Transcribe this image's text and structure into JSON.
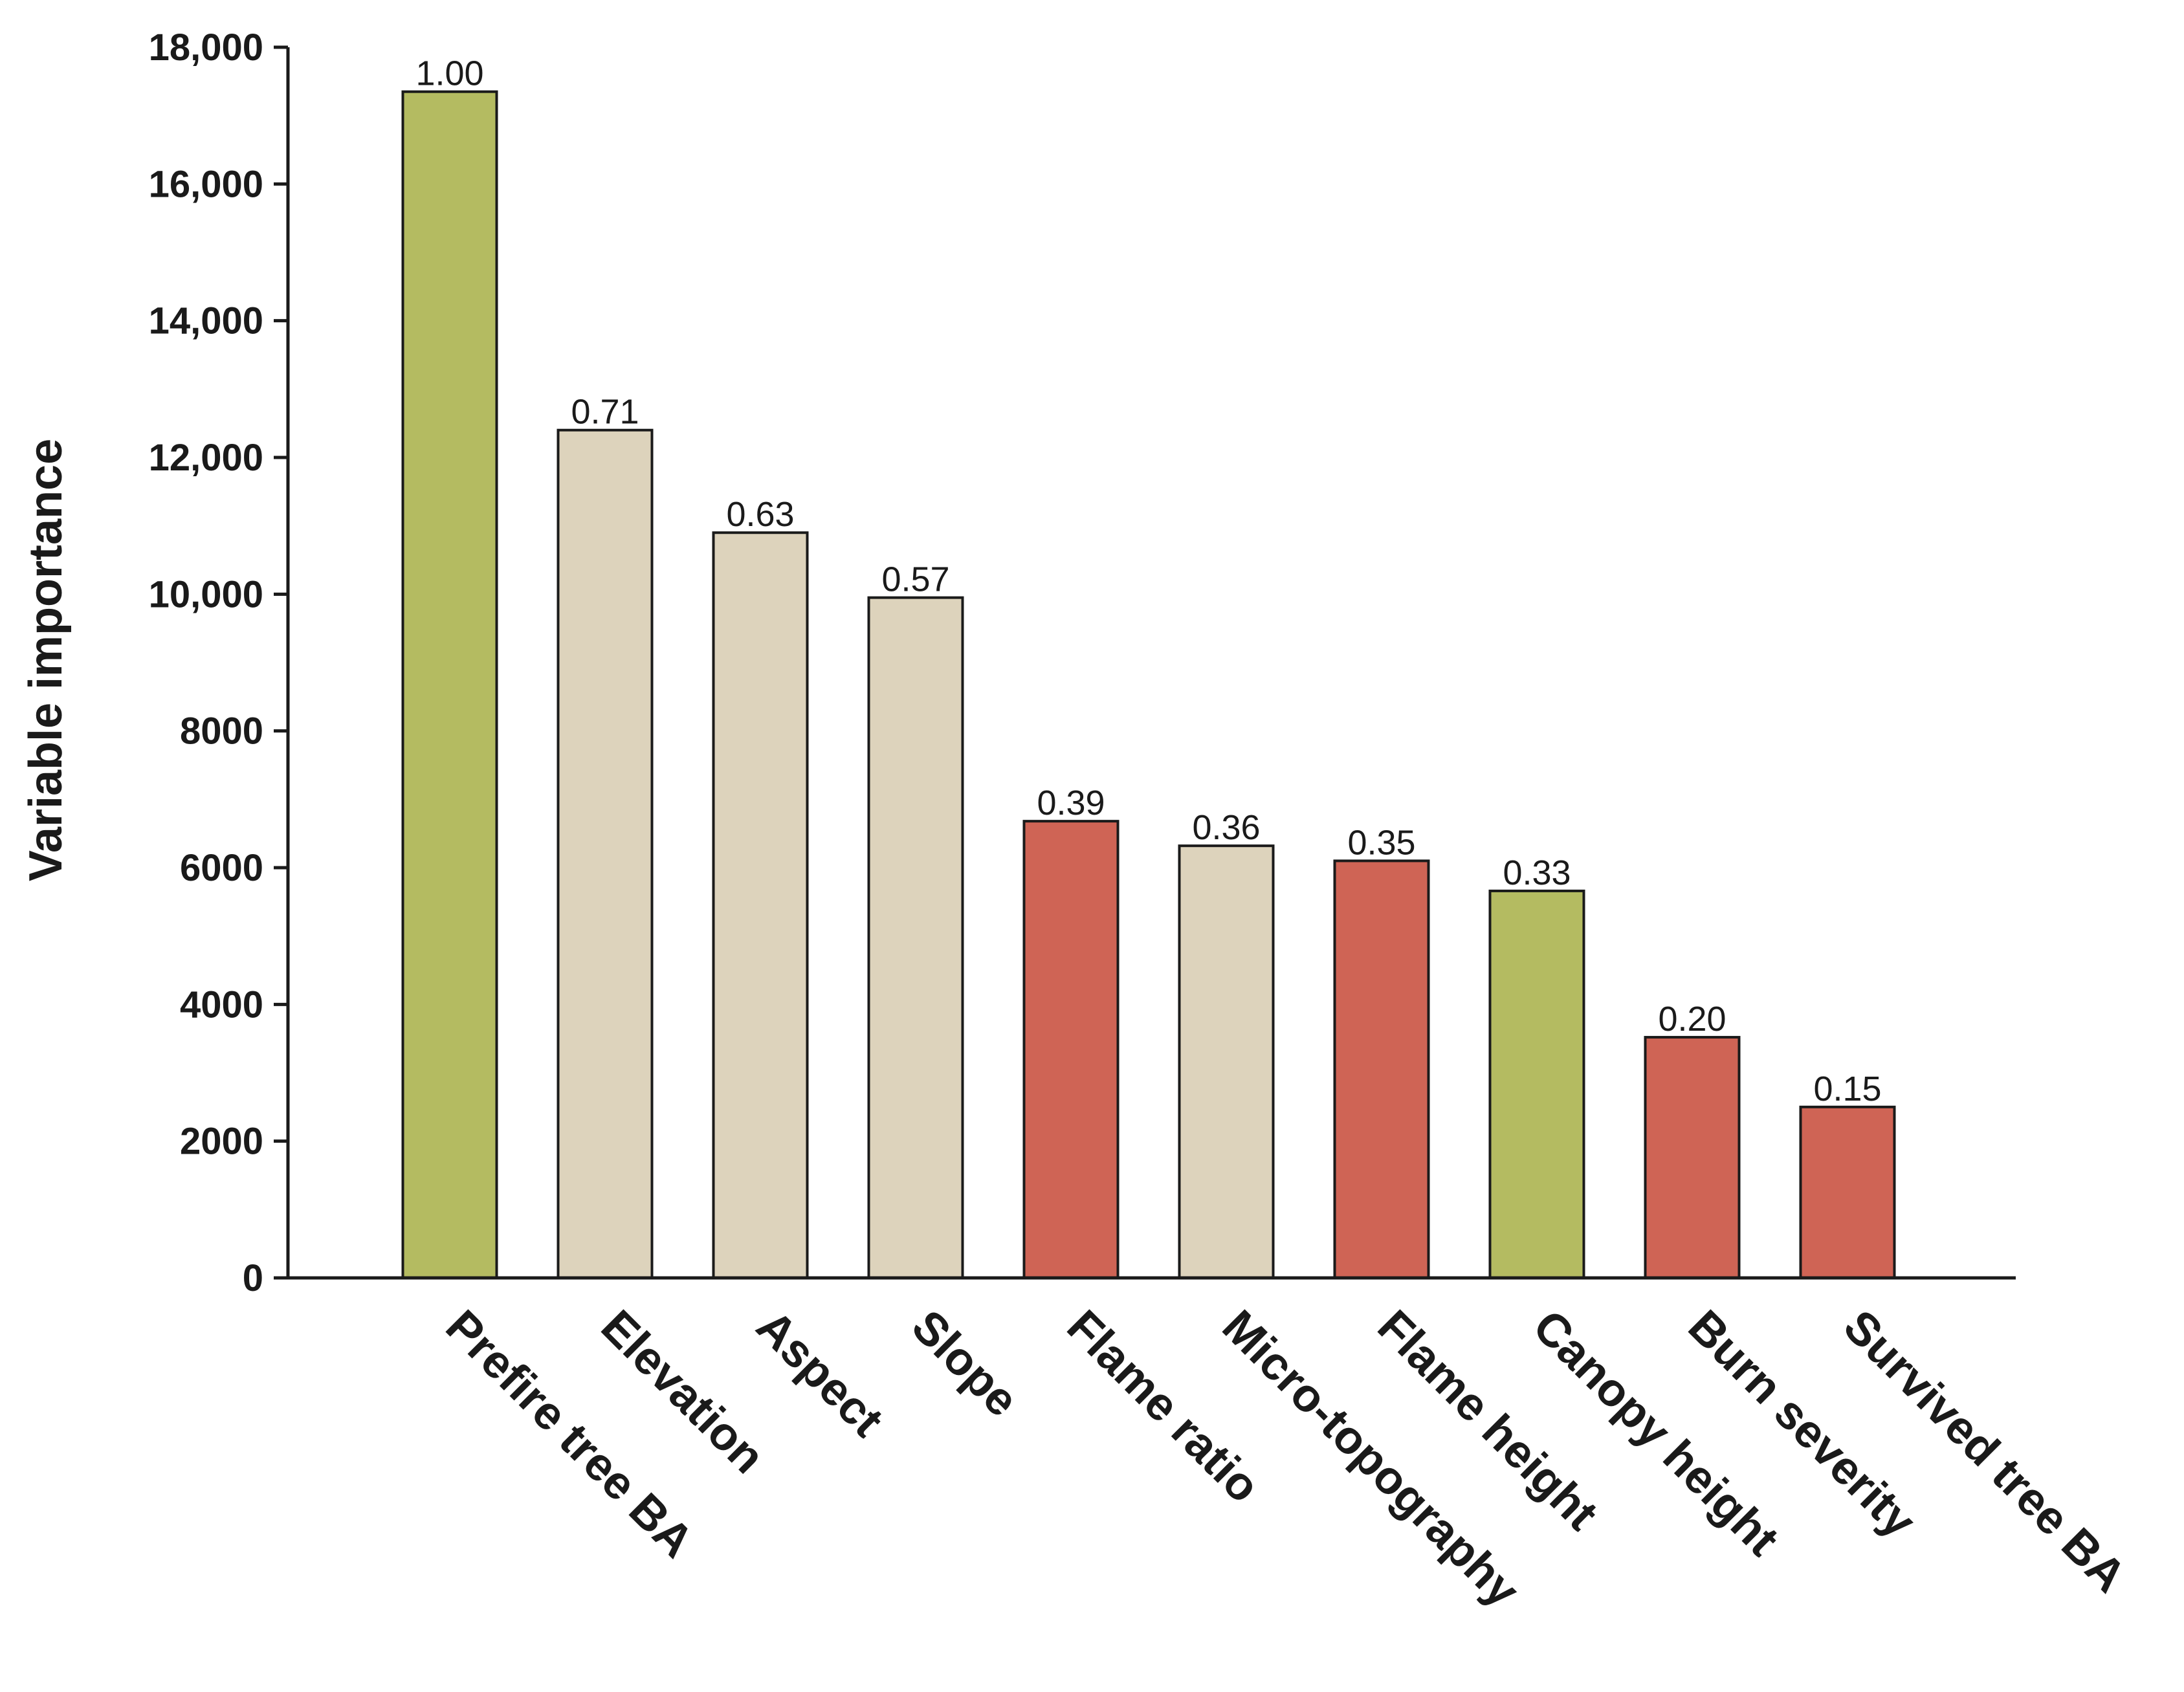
{
  "chart_data": {
    "type": "bar",
    "title": "",
    "xlabel": "",
    "ylabel": "Variable importance",
    "ylim": [
      0,
      18000
    ],
    "yticks": [
      0,
      2000,
      4000,
      6000,
      8000,
      10000,
      12000,
      14000,
      16000,
      18000
    ],
    "ytick_labels": [
      "0",
      "2000",
      "4000",
      "6000",
      "8000",
      "10,000",
      "12,000",
      "14,000",
      "16,000",
      "18,000"
    ],
    "grid": false,
    "legend": "none",
    "categories": [
      "Prefire tree BA",
      "Elevation",
      "Aspect",
      "Slope",
      "Flame ratio",
      "Micro-topography",
      "Flame height",
      "Canopy height",
      "Burn severity",
      "Survived tree BA"
    ],
    "values": [
      17350,
      12400,
      10900,
      9950,
      6680,
      6320,
      6100,
      5660,
      3520,
      2500
    ],
    "labels": [
      "1.00",
      "0.71",
      "0.63",
      "0.57",
      "0.39",
      "0.36",
      "0.35",
      "0.33",
      "0.20",
      "0.15"
    ],
    "bar_colors": [
      "#b4bb61",
      "#ddd3bc",
      "#ddd3bc",
      "#ddd3bc",
      "#cf6455",
      "#ddd3bc",
      "#cf6455",
      "#b4bb61",
      "#cf6455",
      "#cf6455"
    ]
  }
}
